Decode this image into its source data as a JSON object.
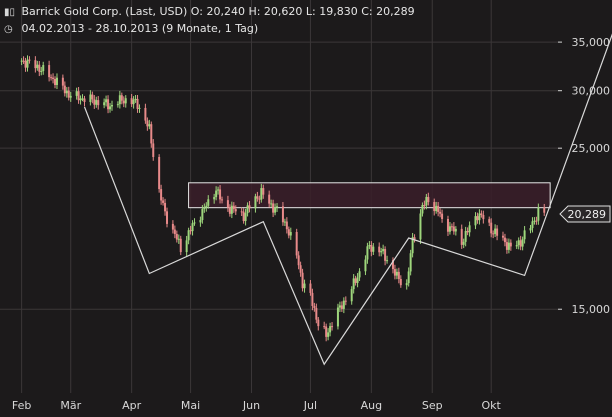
{
  "header": {
    "line1": "Barrick Gold Corp. (Last, USD)  O: 20,240  H: 20,620  L: 19,830  C: 20,289",
    "line2": "04.02.2013 - 28.10.2013 (9 Monate, 1 Tag)",
    "chart_icon": "candlestick-icon",
    "clock_icon": "clock-icon"
  },
  "colors": {
    "background": "#1c1a1b",
    "grid": "#3b3738",
    "up_candle": "#9ed67c",
    "down_candle": "#e88a8a",
    "pattern_line": "#d9d9d9",
    "zone_fill": "#3a1f29",
    "zone_border": "#e8e8e8",
    "axis_text": "#d8d8d8"
  },
  "chart_data": {
    "type": "candlestick",
    "title": "Barrick Gold Corp. (Last, USD)",
    "subtitle": "04.02.2013 - 28.10.2013 (9 Monate, 1 Tag)",
    "last_price": "20,289",
    "ohlc_last": {
      "open": 20.24,
      "high": 20.62,
      "low": 19.83,
      "close": 20.289
    },
    "y_scale": "log",
    "ylim": [
      11.5,
      40.0
    ],
    "y_ticks": [
      {
        "value": 35,
        "label": "35,000"
      },
      {
        "value": 30,
        "label": "30,000"
      },
      {
        "value": 25,
        "label": "25,000"
      },
      {
        "value": 15,
        "label": "15,000"
      }
    ],
    "x_ticks": [
      {
        "date": "2013-02-04",
        "label": "Feb"
      },
      {
        "date": "2013-03-01",
        "label": "Mär"
      },
      {
        "date": "2013-04-01",
        "label": "Apr"
      },
      {
        "date": "2013-05-01",
        "label": "Mai"
      },
      {
        "date": "2013-06-01",
        "label": "Jun"
      },
      {
        "date": "2013-07-01",
        "label": "Jul"
      },
      {
        "date": "2013-08-01",
        "label": "Aug"
      },
      {
        "date": "2013-09-01",
        "label": "Sep"
      },
      {
        "date": "2013-10-01",
        "label": "Okt"
      }
    ],
    "close_series": [
      [
        "2013-02-04",
        33.0
      ],
      [
        "2013-02-12",
        32.4
      ],
      [
        "2013-02-21",
        31.0
      ],
      [
        "2013-03-01",
        29.5
      ],
      [
        "2013-03-07",
        29.3
      ],
      [
        "2013-03-14",
        29.0
      ],
      [
        "2013-03-21",
        28.6
      ],
      [
        "2013-03-28",
        29.2
      ],
      [
        "2013-04-04",
        28.8
      ],
      [
        "2013-04-10",
        26.5
      ],
      [
        "2013-04-15",
        21.8
      ],
      [
        "2013-04-18",
        20.3
      ],
      [
        "2013-04-23",
        19.0
      ],
      [
        "2013-04-26",
        18.2
      ],
      [
        "2013-05-01",
        19.3
      ],
      [
        "2013-05-06",
        20.3
      ],
      [
        "2013-05-10",
        21.0
      ],
      [
        "2013-05-14",
        22.0
      ],
      [
        "2013-05-17",
        21.0
      ],
      [
        "2013-05-22",
        20.6
      ],
      [
        "2013-05-28",
        20.2
      ],
      [
        "2013-06-03",
        21.3
      ],
      [
        "2013-06-06",
        21.7
      ],
      [
        "2013-06-10",
        21.0
      ],
      [
        "2013-06-14",
        20.5
      ],
      [
        "2013-06-19",
        19.5
      ],
      [
        "2013-06-24",
        17.8
      ],
      [
        "2013-06-27",
        16.3
      ],
      [
        "2013-07-01",
        15.6
      ],
      [
        "2013-07-03",
        15.0
      ],
      [
        "2013-07-05",
        14.3
      ],
      [
        "2013-07-09",
        13.8
      ],
      [
        "2013-07-12",
        14.4
      ],
      [
        "2013-07-17",
        15.2
      ],
      [
        "2013-07-22",
        16.0
      ],
      [
        "2013-07-26",
        16.9
      ],
      [
        "2013-07-31",
        18.3
      ],
      [
        "2013-08-05",
        18.1
      ],
      [
        "2013-08-09",
        17.6
      ],
      [
        "2013-08-14",
        16.6
      ],
      [
        "2013-08-19",
        16.2
      ],
      [
        "2013-08-22",
        18.6
      ],
      [
        "2013-08-27",
        20.8
      ],
      [
        "2013-08-30",
        21.2
      ],
      [
        "2013-09-04",
        20.5
      ],
      [
        "2013-09-06",
        19.8
      ],
      [
        "2013-09-11",
        19.4
      ],
      [
        "2013-09-16",
        18.6
      ],
      [
        "2013-09-19",
        19.2
      ],
      [
        "2013-09-24",
        20.3
      ],
      [
        "2013-09-27",
        20.0
      ],
      [
        "2013-10-02",
        19.2
      ],
      [
        "2013-10-07",
        18.7
      ],
      [
        "2013-10-11",
        18.2
      ],
      [
        "2013-10-16",
        18.6
      ],
      [
        "2013-10-21",
        19.5
      ],
      [
        "2013-10-25",
        20.4
      ],
      [
        "2013-10-28",
        20.289
      ]
    ],
    "resistance_zone": {
      "from": "2013-05-01",
      "to": "2013-10-31",
      "low": 20.7,
      "high": 22.4
    },
    "pattern_line": [
      [
        "2013-03-08",
        28.5
      ],
      [
        "2013-04-10",
        16.8
      ],
      [
        "2013-06-07",
        19.8
      ],
      [
        "2013-07-08",
        12.6
      ],
      [
        "2013-08-20",
        18.8
      ],
      [
        "2013-10-18",
        16.7
      ],
      [
        "2013-12-08",
        40.0
      ]
    ]
  }
}
